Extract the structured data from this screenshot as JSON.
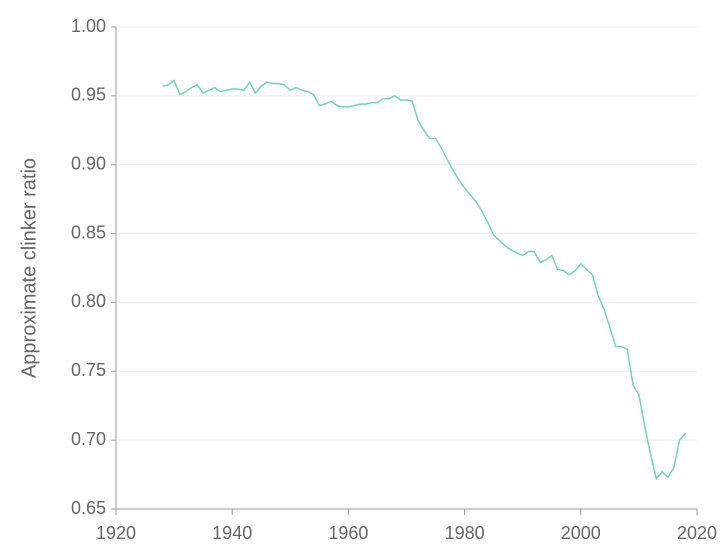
{
  "chart_data": {
    "type": "line",
    "y_label": "Approximate clinker ratio",
    "x": [
      1928,
      1929,
      1930,
      1931,
      1932,
      1933,
      1934,
      1935,
      1936,
      1937,
      1938,
      1939,
      1940,
      1941,
      1942,
      1943,
      1944,
      1945,
      1946,
      1947,
      1948,
      1949,
      1950,
      1951,
      1952,
      1953,
      1954,
      1955,
      1956,
      1957,
      1958,
      1959,
      1960,
      1961,
      1962,
      1963,
      1964,
      1965,
      1966,
      1967,
      1968,
      1969,
      1970,
      1971,
      1972,
      1973,
      1974,
      1975,
      1976,
      1977,
      1978,
      1979,
      1980,
      1981,
      1982,
      1983,
      1984,
      1985,
      1986,
      1987,
      1988,
      1989,
      1990,
      1991,
      1992,
      1993,
      1994,
      1995,
      1996,
      1997,
      1998,
      1999,
      2000,
      2001,
      2002,
      2003,
      2004,
      2005,
      2006,
      2007,
      2008,
      2009,
      2010,
      2011,
      2012,
      2013,
      2014,
      2015,
      2016,
      2017,
      2018
    ],
    "values": [
      0.957,
      0.958,
      0.961,
      0.951,
      0.953,
      0.956,
      0.958,
      0.952,
      0.954,
      0.956,
      0.953,
      0.954,
      0.955,
      0.955,
      0.954,
      0.96,
      0.952,
      0.957,
      0.96,
      0.959,
      0.959,
      0.958,
      0.954,
      0.956,
      0.954,
      0.953,
      0.951,
      0.943,
      0.944,
      0.946,
      0.943,
      0.942,
      0.942,
      0.943,
      0.944,
      0.944,
      0.945,
      0.945,
      0.948,
      0.948,
      0.95,
      0.947,
      0.947,
      0.946,
      0.932,
      0.925,
      0.919,
      0.919,
      0.912,
      0.904,
      0.896,
      0.889,
      0.883,
      0.878,
      0.873,
      0.866,
      0.858,
      0.849,
      0.845,
      0.841,
      0.838,
      0.836,
      0.834,
      0.837,
      0.837,
      0.829,
      0.831,
      0.834,
      0.824,
      0.823,
      0.82,
      0.823,
      0.828,
      0.824,
      0.82,
      0.805,
      0.795,
      0.782,
      0.768,
      0.768,
      0.766,
      0.74,
      0.733,
      0.71,
      0.69,
      0.672,
      0.677,
      0.673,
      0.68,
      0.7,
      0.705
    ],
    "color": "#6fd6b0",
    "xlim": [
      1920,
      2020
    ],
    "xticks": [
      1920,
      1940,
      1960,
      1980,
      2000,
      2020
    ],
    "ylim": [
      0.65,
      1.0
    ],
    "yticks": [
      {
        "value": 0.65,
        "label": "0.65"
      },
      {
        "value": 0.7,
        "label": "0.70"
      },
      {
        "value": 0.75,
        "label": "0.75"
      },
      {
        "value": 0.8,
        "label": "0.80"
      },
      {
        "value": 0.85,
        "label": "0.85"
      },
      {
        "value": 0.9,
        "label": "0.90"
      },
      {
        "value": 0.95,
        "label": "0.95"
      },
      {
        "value": 1.0,
        "label": "1.00"
      }
    ],
    "grid": true
  }
}
